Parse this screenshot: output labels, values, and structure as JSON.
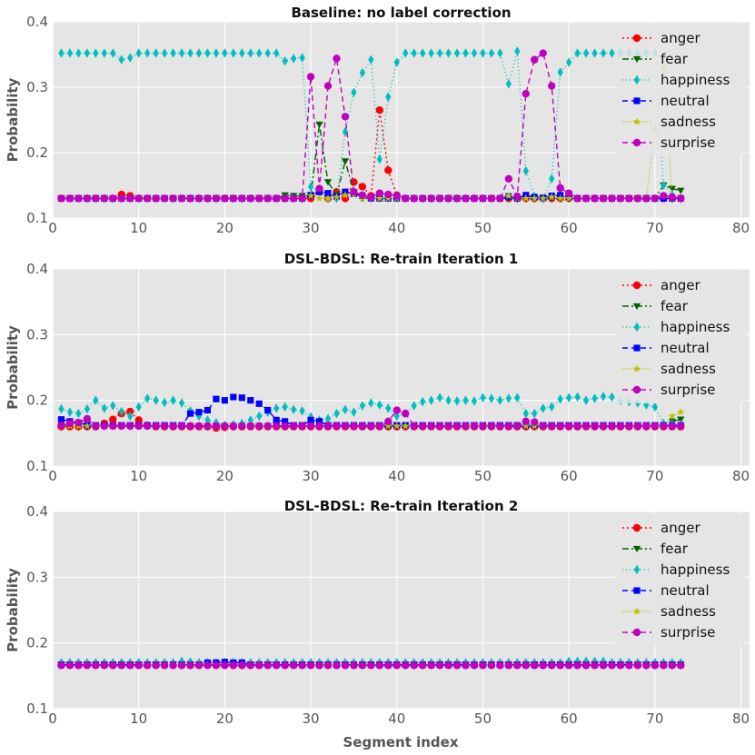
{
  "figure": {
    "xlabel_bottom": "Segment index"
  },
  "chart_data": [
    {
      "type": "line",
      "title": "Baseline: no label correction",
      "xlabel": "",
      "ylabel": "Probability",
      "xlim": [
        0,
        81
      ],
      "ylim": [
        0.1,
        0.4
      ],
      "xticks": [
        0,
        10,
        20,
        30,
        40,
        50,
        60,
        70,
        80
      ],
      "yticks": [
        0.1,
        0.2,
        0.3,
        0.4
      ],
      "legend": "top-right",
      "x_range": [
        1,
        73
      ],
      "series": [
        {
          "name": "anger",
          "color": "#ff0000",
          "marker": "circle",
          "dash": "2,3",
          "base": 0.13,
          "points": [
            [
              8,
              0.136
            ],
            [
              9,
              0.134
            ],
            [
              31,
              0.14
            ],
            [
              33,
              0.14
            ],
            [
              35,
              0.155
            ],
            [
              36,
              0.148
            ],
            [
              37,
              0.134
            ],
            [
              38,
              0.265
            ],
            [
              39,
              0.173
            ],
            [
              40,
              0.135
            ]
          ]
        },
        {
          "name": "fear",
          "color": "#006400",
          "marker": "triangle-down",
          "dash": "7,3,2,3",
          "base": 0.13,
          "points": [
            [
              27,
              0.135
            ],
            [
              28,
              0.134
            ],
            [
              29,
              0.134
            ],
            [
              30,
              0.134
            ],
            [
              31,
              0.243
            ],
            [
              32,
              0.155
            ],
            [
              33,
              0.135
            ],
            [
              34,
              0.187
            ],
            [
              35,
              0.14
            ],
            [
              71,
              0.15
            ],
            [
              72,
              0.145
            ],
            [
              73,
              0.142
            ]
          ]
        },
        {
          "name": "happiness",
          "color": "#00bfbf",
          "marker": "diamond",
          "dash": "1,3",
          "base": 0.352,
          "points": [
            [
              8,
              0.342
            ],
            [
              9,
              0.345
            ],
            [
              27,
              0.34
            ],
            [
              28,
              0.344
            ],
            [
              29,
              0.345
            ],
            [
              30,
              0.148
            ],
            [
              31,
              0.14
            ],
            [
              32,
              0.13
            ],
            [
              33,
              0.13
            ],
            [
              34,
              0.232
            ],
            [
              35,
              0.292
            ],
            [
              36,
              0.322
            ],
            [
              37,
              0.342
            ],
            [
              38,
              0.19
            ],
            [
              39,
              0.285
            ],
            [
              40,
              0.338
            ],
            [
              53,
              0.305
            ],
            [
              54,
              0.355
            ],
            [
              55,
              0.172
            ],
            [
              56,
              0.133
            ],
            [
              57,
              0.13
            ],
            [
              58,
              0.16
            ],
            [
              59,
              0.323
            ],
            [
              60,
              0.338
            ],
            [
              71,
              0.15
            ],
            [
              72,
              0.135
            ],
            [
              73,
              0.13
            ]
          ]
        },
        {
          "name": "neutral",
          "color": "#0000ff",
          "marker": "square",
          "dash": "6,4",
          "base": 0.13,
          "points": [
            [
              30,
              0.135
            ],
            [
              31,
              0.14
            ],
            [
              32,
              0.138
            ],
            [
              33,
              0.133
            ],
            [
              34,
              0.14
            ],
            [
              35,
              0.137
            ],
            [
              36,
              0.134
            ],
            [
              53,
              0.133
            ],
            [
              55,
              0.135
            ],
            [
              56,
              0.132
            ],
            [
              57,
              0.131
            ],
            [
              58,
              0.134
            ],
            [
              59,
              0.135
            ],
            [
              60,
              0.132
            ]
          ]
        },
        {
          "name": "sadness",
          "color": "#bfbf00",
          "marker": "star",
          "dash": "1,2",
          "base": 0.13,
          "points": [
            [
              30,
              0.134
            ],
            [
              33,
              0.132
            ],
            [
              34,
              0.135
            ],
            [
              35,
              0.136
            ],
            [
              53,
              0.134
            ],
            [
              58,
              0.132
            ],
            [
              70,
              0.235
            ],
            [
              71,
              0.33
            ]
          ]
        },
        {
          "name": "surprise",
          "color": "#bf00bf",
          "marker": "circle",
          "dash": "6,4",
          "base": 0.13,
          "points": [
            [
              30,
              0.316
            ],
            [
              31,
              0.145
            ],
            [
              32,
              0.302
            ],
            [
              33,
              0.344
            ],
            [
              34,
              0.255
            ],
            [
              35,
              0.14
            ],
            [
              36,
              0.135
            ],
            [
              37,
              0.132
            ],
            [
              38,
              0.138
            ],
            [
              39,
              0.136
            ],
            [
              40,
              0.134
            ],
            [
              53,
              0.16
            ],
            [
              54,
              0.133
            ],
            [
              55,
              0.29
            ],
            [
              56,
              0.342
            ],
            [
              57,
              0.352
            ],
            [
              58,
              0.302
            ],
            [
              59,
              0.146
            ],
            [
              60,
              0.138
            ],
            [
              71,
              0.134
            ],
            [
              72,
              0.132
            ],
            [
              73,
              0.13
            ]
          ]
        }
      ]
    },
    {
      "type": "line",
      "title": "DSL-BDSL: Re-train Iteration 1",
      "xlabel": "",
      "ylabel": "Probability",
      "xlim": [
        0,
        81
      ],
      "ylim": [
        0.1,
        0.4
      ],
      "xticks": [
        0,
        10,
        20,
        30,
        40,
        50,
        60,
        70,
        80
      ],
      "yticks": [
        0.1,
        0.2,
        0.3,
        0.4
      ],
      "legend": "top-right",
      "x_range": [
        1,
        73
      ],
      "series": [
        {
          "name": "anger",
          "color": "#ff0000",
          "marker": "circle",
          "dash": "2,3",
          "base": 0.16,
          "points": [
            [
              6,
              0.165
            ],
            [
              7,
              0.171
            ],
            [
              8,
              0.18
            ],
            [
              9,
              0.183
            ],
            [
              10,
              0.17
            ],
            [
              11,
              0.162
            ],
            [
              19,
              0.158
            ],
            [
              20,
              0.159
            ]
          ]
        },
        {
          "name": "fear",
          "color": "#006400",
          "marker": "triangle-down",
          "dash": "7,3,2,3",
          "base": 0.161,
          "points": [
            [
              72,
              0.168
            ],
            [
              73,
              0.171
            ]
          ]
        },
        {
          "name": "happiness",
          "color": "#00bfbf",
          "marker": "diamond",
          "dash": "1,3",
          "base": 0.19,
          "points": [
            [
              1,
              0.187
            ],
            [
              2,
              0.182
            ],
            [
              3,
              0.18
            ],
            [
              4,
              0.187
            ],
            [
              5,
              0.2
            ],
            [
              6,
              0.188
            ],
            [
              7,
              0.192
            ],
            [
              8,
              0.183
            ],
            [
              9,
              0.176
            ],
            [
              10,
              0.19
            ],
            [
              11,
              0.203
            ],
            [
              12,
              0.2
            ],
            [
              13,
              0.197
            ],
            [
              14,
              0.2
            ],
            [
              15,
              0.196
            ],
            [
              16,
              0.184
            ],
            [
              17,
              0.176
            ],
            [
              18,
              0.17
            ],
            [
              19,
              0.166
            ],
            [
              20,
              0.162
            ],
            [
              21,
              0.163
            ],
            [
              22,
              0.165
            ],
            [
              23,
              0.17
            ],
            [
              24,
              0.176
            ],
            [
              25,
              0.182
            ],
            [
              26,
              0.188
            ],
            [
              27,
              0.19
            ],
            [
              28,
              0.186
            ],
            [
              29,
              0.184
            ],
            [
              30,
              0.175
            ],
            [
              31,
              0.17
            ],
            [
              32,
              0.172
            ],
            [
              33,
              0.18
            ],
            [
              34,
              0.186
            ],
            [
              35,
              0.182
            ],
            [
              36,
              0.192
            ],
            [
              37,
              0.196
            ],
            [
              38,
              0.193
            ],
            [
              39,
              0.188
            ],
            [
              40,
              0.176
            ],
            [
              41,
              0.18
            ],
            [
              42,
              0.192
            ],
            [
              43,
              0.198
            ],
            [
              44,
              0.2
            ],
            [
              45,
              0.204
            ],
            [
              46,
              0.2
            ],
            [
              47,
              0.199
            ],
            [
              48,
              0.2
            ],
            [
              49,
              0.199
            ],
            [
              50,
              0.204
            ],
            [
              51,
              0.203
            ],
            [
              52,
              0.2
            ],
            [
              53,
              0.203
            ],
            [
              54,
              0.204
            ],
            [
              55,
              0.18
            ],
            [
              56,
              0.18
            ],
            [
              57,
              0.188
            ],
            [
              58,
              0.19
            ],
            [
              59,
              0.202
            ],
            [
              60,
              0.204
            ],
            [
              61,
              0.205
            ],
            [
              62,
              0.2
            ],
            [
              63,
              0.203
            ],
            [
              64,
              0.206
            ],
            [
              65,
              0.205
            ],
            [
              66,
              0.2
            ],
            [
              67,
              0.198
            ],
            [
              68,
              0.196
            ],
            [
              69,
              0.193
            ],
            [
              70,
              0.19
            ],
            [
              71,
              0.165
            ],
            [
              72,
              0.164
            ],
            [
              73,
              0.163
            ]
          ]
        },
        {
          "name": "neutral",
          "color": "#0000ff",
          "marker": "square",
          "dash": "6,4",
          "base": 0.162,
          "points": [
            [
              1,
              0.171
            ],
            [
              2,
              0.168
            ],
            [
              3,
              0.166
            ],
            [
              16,
              0.18
            ],
            [
              17,
              0.182
            ],
            [
              18,
              0.185
            ],
            [
              19,
              0.202
            ],
            [
              20,
              0.2
            ],
            [
              21,
              0.205
            ],
            [
              22,
              0.204
            ],
            [
              23,
              0.2
            ],
            [
              24,
              0.195
            ],
            [
              25,
              0.185
            ],
            [
              26,
              0.17
            ],
            [
              27,
              0.168
            ],
            [
              30,
              0.17
            ],
            [
              31,
              0.168
            ]
          ]
        },
        {
          "name": "sadness",
          "color": "#bfbf00",
          "marker": "star",
          "dash": "1,2",
          "base": 0.161,
          "points": [
            [
              72,
              0.176
            ],
            [
              73,
              0.182
            ]
          ]
        },
        {
          "name": "surprise",
          "color": "#bf00bf",
          "marker": "circle",
          "dash": "6,4",
          "base": 0.161,
          "points": [
            [
              1,
              0.162
            ],
            [
              2,
              0.165
            ],
            [
              3,
              0.166
            ],
            [
              4,
              0.172
            ],
            [
              39,
              0.168
            ],
            [
              40,
              0.185
            ],
            [
              41,
              0.18
            ],
            [
              55,
              0.168
            ],
            [
              56,
              0.167
            ]
          ]
        }
      ]
    },
    {
      "type": "line",
      "title": "DSL-BDSL: Re-train Iteration 2",
      "xlabel": "Segment index",
      "ylabel": "Probability",
      "xlim": [
        0,
        81
      ],
      "ylim": [
        0.1,
        0.4
      ],
      "xticks": [
        0,
        10,
        20,
        30,
        40,
        50,
        60,
        70,
        80
      ],
      "yticks": [
        0.1,
        0.2,
        0.3,
        0.4
      ],
      "legend": "top-right",
      "x_range": [
        1,
        73
      ],
      "series": [
        {
          "name": "anger",
          "color": "#ff0000",
          "marker": "circle",
          "dash": "2,3",
          "base": 0.166,
          "points": []
        },
        {
          "name": "fear",
          "color": "#006400",
          "marker": "triangle-down",
          "dash": "7,3,2,3",
          "base": 0.167,
          "points": []
        },
        {
          "name": "happiness",
          "color": "#00bfbf",
          "marker": "diamond",
          "dash": "1,3",
          "base": 0.17,
          "points": [
            [
              15,
              0.172
            ],
            [
              16,
              0.171
            ],
            [
              60,
              0.172
            ],
            [
              61,
              0.172
            ],
            [
              62,
              0.172
            ],
            [
              63,
              0.172
            ],
            [
              64,
              0.172
            ]
          ]
        },
        {
          "name": "neutral",
          "color": "#0000ff",
          "marker": "square",
          "dash": "6,4",
          "base": 0.167,
          "points": [
            [
              18,
              0.17
            ],
            [
              19,
              0.17
            ],
            [
              20,
              0.171
            ],
            [
              21,
              0.17
            ],
            [
              22,
              0.17
            ]
          ]
        },
        {
          "name": "sadness",
          "color": "#bfbf00",
          "marker": "star",
          "dash": "1,2",
          "base": 0.167,
          "points": []
        },
        {
          "name": "surprise",
          "color": "#bf00bf",
          "marker": "circle",
          "dash": "6,4",
          "base": 0.166,
          "points": []
        }
      ]
    }
  ]
}
